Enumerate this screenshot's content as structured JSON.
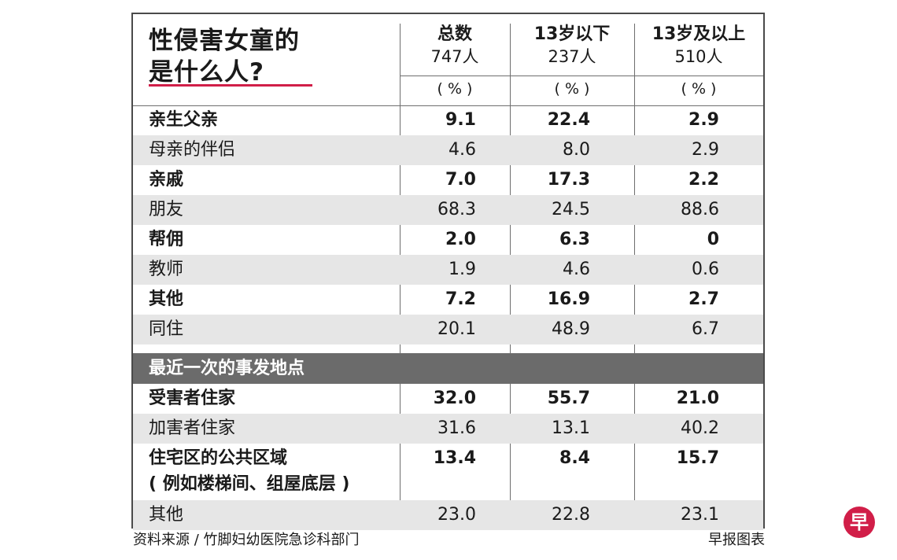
{
  "colors": {
    "accent": "#d11e48",
    "section_bar": "#6b6b6b",
    "shade": "#e6e6e6"
  },
  "header": {
    "title_line1": "性侵害女童的",
    "title_line2": "是什么人?"
  },
  "chart_data": {
    "type": "table",
    "title": "性侵害女童的是什么人?",
    "columns": [
      {
        "title": "总数",
        "count": "747人",
        "unit": "( % )"
      },
      {
        "title": "13岁以下",
        "count": "237人",
        "unit": "( % )"
      },
      {
        "title": "13岁及以上",
        "count": "510人",
        "unit": "( % )"
      }
    ],
    "sections": [
      {
        "title": "",
        "rows": [
          {
            "label": "亲生父亲",
            "values": [
              "9.1",
              "22.4",
              "2.9"
            ]
          },
          {
            "label": "母亲的伴侣",
            "values": [
              "4.6",
              "8.0",
              "2.9"
            ]
          },
          {
            "label": "亲戚",
            "values": [
              "7.0",
              "17.3",
              "2.2"
            ]
          },
          {
            "label": "朋友",
            "values": [
              "68.3",
              "24.5",
              "88.6"
            ]
          },
          {
            "label": "帮佣",
            "values": [
              "2.0",
              "6.3",
              "0"
            ]
          },
          {
            "label": "教师",
            "values": [
              "1.9",
              "4.6",
              "0.6"
            ]
          },
          {
            "label": "其他",
            "values": [
              "7.2",
              "16.9",
              "2.7"
            ]
          },
          {
            "label": "同住",
            "values": [
              "20.1",
              "48.9",
              "6.7"
            ]
          }
        ]
      },
      {
        "title": "最近一次的事发地点",
        "rows": [
          {
            "label": "受害者住家",
            "values": [
              "32.0",
              "55.7",
              "21.0"
            ]
          },
          {
            "label": "加害者住家",
            "values": [
              "31.6",
              "13.1",
              "40.2"
            ]
          },
          {
            "label": "住宅区的公共区域",
            "label2": "( 例如楼梯间、组屋底层 )",
            "values": [
              "13.4",
              "8.4",
              "15.7"
            ]
          },
          {
            "label": "其他",
            "values": [
              "23.0",
              "22.8",
              "23.1"
            ]
          }
        ]
      }
    ]
  },
  "footer": {
    "source": "资料来源 / 竹脚妇幼医院急诊科部门",
    "credit": "早报图表",
    "logo_char": "早"
  }
}
